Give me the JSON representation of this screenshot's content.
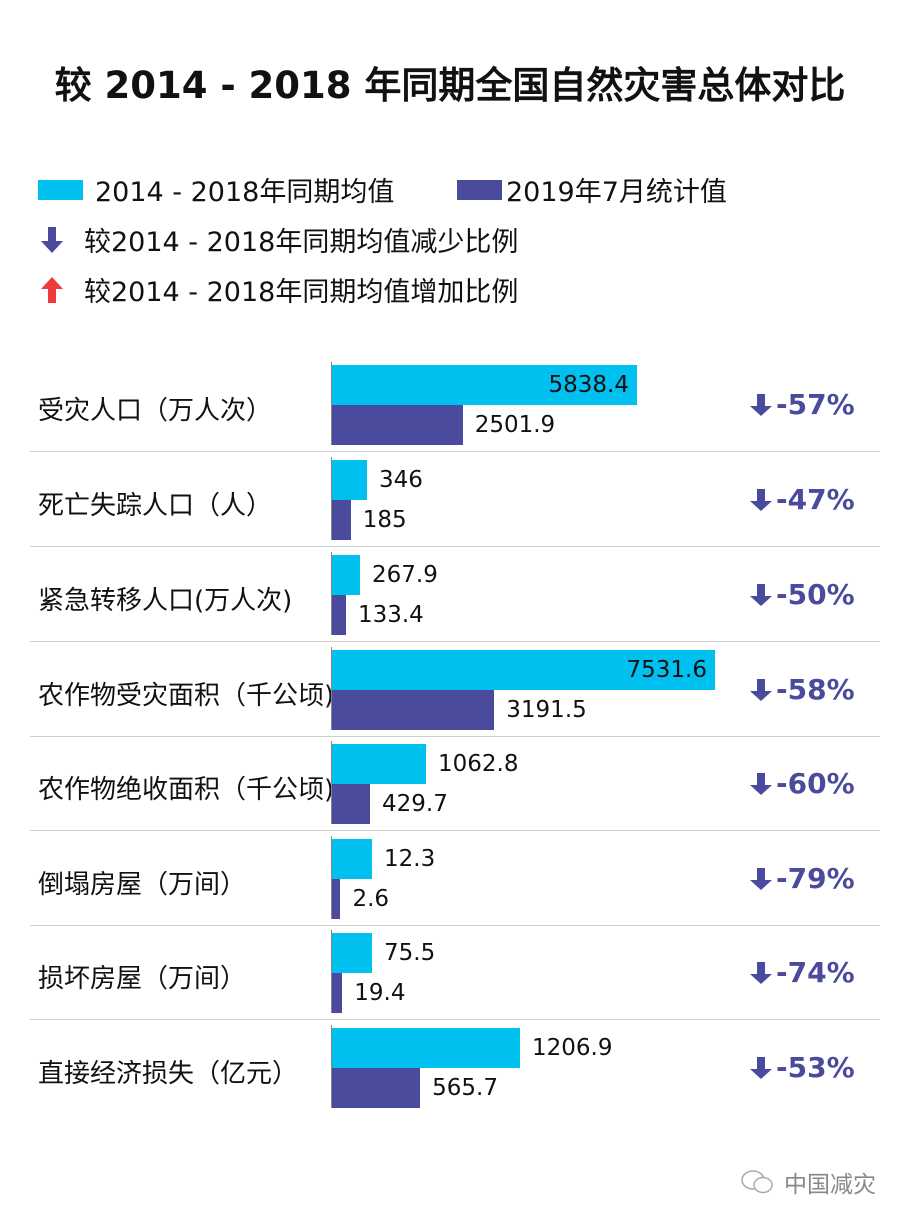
{
  "chart_data": {
    "type": "bar",
    "orientation": "horizontal",
    "title": "较 2014 - 2018 年同期全国自然灾害总体对比",
    "categories": [
      "受灾人口（万人次）",
      "死亡失踪人口（人）",
      "紧急转移人口(万人次)",
      "农作物受灾面积（千公顷)",
      "农作物绝收面积（千公顷)",
      "倒塌房屋（万间）",
      "损坏房屋（万间）",
      "直接经济损失（亿元）"
    ],
    "series": [
      {
        "name": "2014 - 2018年同期均值",
        "color": "#00c0f0",
        "values": [
          5838.4,
          346,
          267.9,
          7531.6,
          1062.8,
          12.3,
          75.5,
          1206.9
        ],
        "labels": [
          "5838.4",
          "346",
          "267.9",
          "7531.6",
          "1062.8",
          "12.3",
          "75.5",
          "1206.9"
        ]
      },
      {
        "name": "2019年7月统计值",
        "color": "#4b4b9e",
        "values": [
          2501.9,
          185,
          133.4,
          3191.5,
          429.7,
          2.6,
          19.4,
          565.7
        ],
        "labels": [
          "2501.9",
          "185",
          "133.4",
          "3191.5",
          "429.7",
          "2.6",
          "19.4",
          "565.7"
        ]
      }
    ],
    "change": {
      "direction": [
        "down",
        "down",
        "down",
        "down",
        "down",
        "down",
        "down",
        "down"
      ],
      "labels": [
        "-57%",
        "-47%",
        "-50%",
        "-58%",
        "-60%",
        "-79%",
        "-74%",
        "-53%"
      ]
    },
    "legend": {
      "decrease": "较2014 - 2018年同期均值减少比例",
      "increase": "较2014 - 2018年同期均值增加比例",
      "decrease_color": "#4b4b9e",
      "increase_color": "#ee3b3b"
    },
    "grid": false
  },
  "watermark": "中国减灾"
}
